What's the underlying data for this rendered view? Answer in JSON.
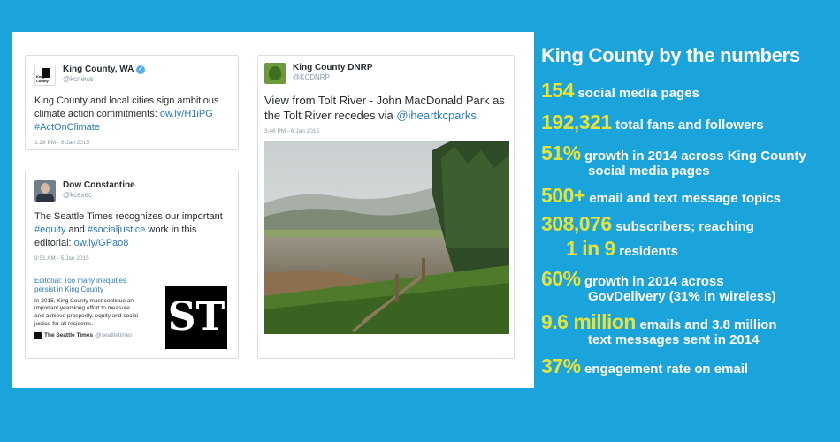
{
  "tweets": {
    "kc": {
      "name": "King County, WA",
      "handle": "@kcnews",
      "avatar_label": "King County",
      "text_before": "King County and local cities sign ambitious climate action commitments: ",
      "link": "ow.ly/H1iPG",
      "hashtag": "#ActOnClimate",
      "time": "1:28 PM - 8 Jan 2015"
    },
    "dow": {
      "name": "Dow Constantine",
      "handle": "@kcexec",
      "text_a": "The Seattle Times recognizes our important ",
      "tag1": "#equity",
      "text_b": " and ",
      "tag2": "#socialjustice",
      "text_c": " work in this editorial: ",
      "link": "ow.ly/GPao8",
      "time": "9:51 AM - 5 Jan 2015",
      "embed": {
        "headline": "Editorial: Too many inequities persist in King County",
        "body": "In 2015, King County must continue an important yearslong effort to measure and achieve prosperity, equity and social justice for all residents.",
        "source": "The Seattle Times",
        "source_handle": "@seattletimes",
        "logo_text": "ST"
      }
    },
    "dnrp": {
      "name": "King County DNRP",
      "handle": "@KCDNRP",
      "text": "View from Tolt River - John MacDonald Park as the Tolt River recedes via ",
      "link": "@iheartkcparks",
      "time": "3:46 PM - 6 Jan 2015"
    }
  },
  "stats": {
    "title": "King County by the numbers",
    "items": [
      {
        "num": "154",
        "desc": "social media pages",
        "desc2": ""
      },
      {
        "num": "192,321",
        "desc": "total fans and followers",
        "desc2": ""
      },
      {
        "num": "51%",
        "desc": "growth in 2014 across King County",
        "desc2": "social media pages"
      },
      {
        "num": "500+",
        "desc": "email and text message topics",
        "desc2": ""
      },
      {
        "num": "308,076",
        "desc": "subscribers; reaching",
        "desc2": ""
      },
      {
        "num": "1 in 9",
        "desc": "residents",
        "desc2": ""
      },
      {
        "num": "60%",
        "desc": "growth in 2014 across",
        "desc2": "GovDelivery (31% in wireless)"
      },
      {
        "num": "9.6 million",
        "desc": "emails and 3.8 million",
        "desc2": "text messages sent in 2014"
      },
      {
        "num": "37%",
        "desc": "engagement rate on email",
        "desc2": ""
      }
    ]
  },
  "colors": {
    "background": "#1ba3dc",
    "stat_number": "#e6e23a",
    "link": "#2b7bb9"
  }
}
